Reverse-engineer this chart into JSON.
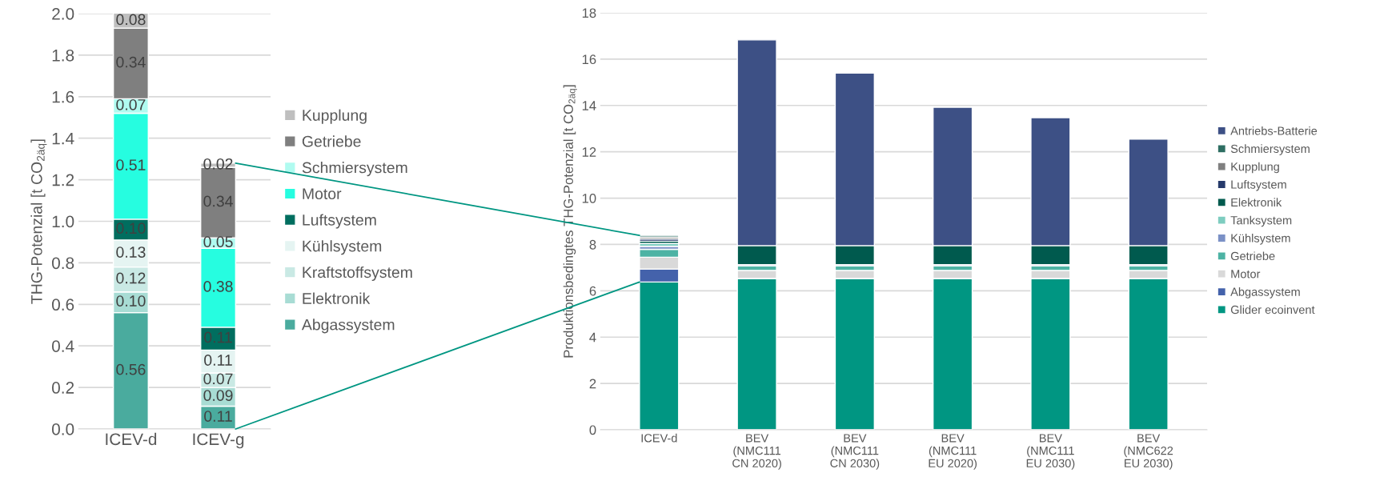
{
  "chart_data": [
    {
      "type": "bar",
      "stacked": true,
      "ylabel": "THG-Potenzial [t CO$_{2äq}$]",
      "categories": [
        "ICEV-d",
        "ICEV-g"
      ],
      "ylim": [
        0,
        2.0
      ],
      "yticks": [
        {
          "value": 0,
          "label": "0.0"
        },
        {
          "value": 0.2,
          "label": "0.2"
        },
        {
          "value": 0.4,
          "label": "0.4"
        },
        {
          "value": 0.6,
          "label": "0.6"
        },
        {
          "value": 0.8,
          "label": "0.8"
        },
        {
          "value": 1.0,
          "label": "1.0"
        },
        {
          "value": 1.2,
          "label": "1.2"
        },
        {
          "value": 1.4,
          "label": "1.4"
        },
        {
          "value": 1.6,
          "label": "1.6"
        },
        {
          "value": 1.8,
          "label": "1.8"
        },
        {
          "value": 2.0,
          "label": "2.0"
        }
      ],
      "grid": "y",
      "legend": "right",
      "series": [
        {
          "name": "Abgassystem",
          "color": "#4aab9e",
          "values": [
            0.56,
            0.11
          ],
          "value_labels": [
            "0.56",
            "0.11"
          ]
        },
        {
          "name": "Elektronik",
          "color": "#a8dcd4",
          "values": [
            0.1,
            0.09
          ],
          "value_labels": [
            "0.10",
            "0.09"
          ]
        },
        {
          "name": "Kraftstoffsystem",
          "color": "#c9e9e4",
          "values": [
            0.12,
            0.07
          ],
          "value_labels": [
            "0.12",
            "0.07"
          ]
        },
        {
          "name": "Kühlsystem",
          "color": "#e5f4f2",
          "values": [
            0.13,
            0.11
          ],
          "value_labels": [
            "0.13",
            "0.11"
          ]
        },
        {
          "name": "Luftsystem",
          "color": "#006e5f",
          "values": [
            0.1,
            0.11
          ],
          "value_labels": [
            "0.10",
            "0.11"
          ]
        },
        {
          "name": "Motor",
          "color": "#26fde0",
          "values": [
            0.51,
            0.38
          ],
          "value_labels": [
            "0.51",
            "0.38"
          ]
        },
        {
          "name": "Schmiersystem",
          "color": "#b0fbf0",
          "values": [
            0.07,
            0.05
          ],
          "value_labels": [
            "0.07",
            "0.05"
          ]
        },
        {
          "name": "Getriebe",
          "color": "#7f7f7f",
          "values": [
            0.34,
            0.34
          ],
          "value_labels": [
            "0.34",
            "0.34"
          ]
        },
        {
          "name": "Kupplung",
          "color": "#bfbfbf",
          "values": [
            0.075,
            0.02
          ],
          "value_labels": [
            "0.08",
            "0.02"
          ]
        }
      ]
    },
    {
      "type": "bar",
      "stacked": true,
      "ylabel": "Produktionsbedingtes THG-Potenzial [t CO$_{2äq}$]",
      "categories": [
        "ICEV-d",
        "BEV\n(NMC111\nCN 2020)",
        "BEV\n(NMC111\nCN 2030)",
        "BEV\n(NMC111\nEU 2020)",
        "BEV\n(NMC111\nEU 2030)",
        "BEV\n(NMC622\nEU 2030)"
      ],
      "ylim": [
        0,
        18
      ],
      "yticks": [
        0,
        2,
        4,
        6,
        8,
        10,
        12,
        14,
        16,
        18
      ],
      "grid": "y",
      "legend": "right",
      "series": [
        {
          "name": "Glider ecoinvent",
          "color": "#009682",
          "values": [
            6.38,
            6.53,
            6.53,
            6.53,
            6.53,
            6.53
          ]
        },
        {
          "name": "Abgassystem",
          "color": "#4462ab",
          "values": [
            0.56,
            null,
            null,
            null,
            null,
            null
          ]
        },
        {
          "name": "Motor",
          "color": "#d9d9d9",
          "values": [
            0.51,
            0.35,
            0.35,
            0.35,
            0.35,
            0.35
          ]
        },
        {
          "name": "Getriebe",
          "color": "#4db3a4",
          "values": [
            0.34,
            0.2,
            0.2,
            0.2,
            0.2,
            0.2
          ]
        },
        {
          "name": "Kühlsystem",
          "color": "#7b91c6",
          "values": [
            0.13,
            0.05,
            0.05,
            0.05,
            0.05,
            0.05
          ]
        },
        {
          "name": "Tanksystem",
          "color": "#7ecdc0",
          "values": [
            0.12,
            null,
            null,
            null,
            null,
            null
          ]
        },
        {
          "name": "Elektronik",
          "color": "#005a4e",
          "values": [
            0.1,
            0.82,
            0.82,
            0.82,
            0.82,
            0.82
          ]
        },
        {
          "name": "Luftsystem",
          "color": "#263a6b",
          "values": [
            0.1,
            null,
            null,
            null,
            null,
            null
          ]
        },
        {
          "name": "Kupplung",
          "color": "#808080",
          "values": [
            0.08,
            null,
            null,
            null,
            null,
            null
          ]
        },
        {
          "name": "Schmiersystem",
          "color": "#2e6e62",
          "values": [
            0.07,
            null,
            null,
            null,
            null,
            null
          ]
        },
        {
          "name": "Antriebs-Batterie",
          "color": "#3d5085",
          "values": [
            null,
            8.88,
            7.45,
            5.97,
            5.52,
            4.6
          ]
        }
      ]
    }
  ]
}
